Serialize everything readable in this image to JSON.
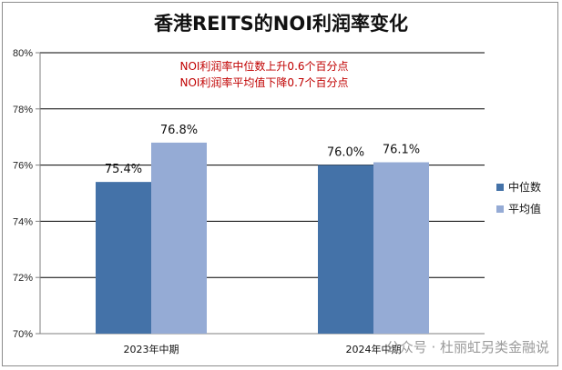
{
  "chart_data": {
    "type": "bar",
    "title": "香港REITS的NOI利润率变化",
    "categories": [
      "2023年中期",
      "2024年中期"
    ],
    "series": [
      {
        "name": "中位数",
        "values": [
          75.4,
          76.0
        ],
        "labels": [
          "75.4%",
          "76.0%"
        ],
        "color": "#4472a8"
      },
      {
        "name": "平均值",
        "values": [
          76.8,
          76.1
        ],
        "labels": [
          "76.8%",
          "76.1%"
        ],
        "color": "#95abd5"
      }
    ],
    "ylim": [
      70,
      80
    ],
    "yticks": [
      70,
      72,
      74,
      76,
      78,
      80
    ],
    "ytick_labels": [
      "70%",
      "72%",
      "74%",
      "76%",
      "78%",
      "80%"
    ],
    "grid": true,
    "legend_position": "right",
    "annotations": [
      "NOI利润率中位数上升0.6个百分点",
      "NOI利润率平均值下降0.7个百分点"
    ]
  },
  "watermark": "公众号 · 杜丽虹另类金融说"
}
